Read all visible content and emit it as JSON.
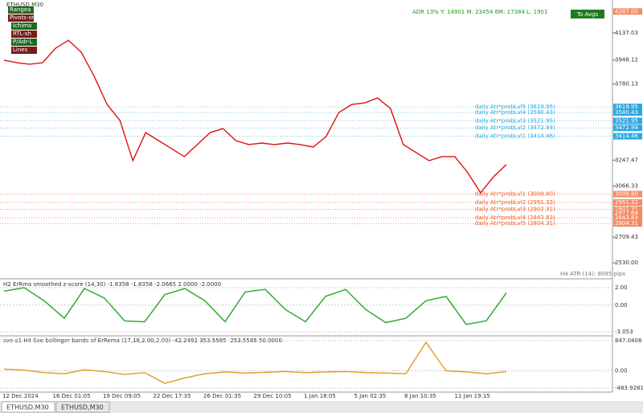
{
  "window": {
    "symbol": "ETHUSD,M30",
    "buttons": [
      "Rangea",
      "Pivots-or",
      "Ichimo",
      "RTL-sh",
      "P/Adr-L",
      "Lines"
    ],
    "stats": "ADR 13%  Y: 14901  M: 23454  6M: 17384  L: 1901",
    "avg_button": "To Avgs",
    "price_axis": [
      {
        "value": 4287.0,
        "label": "4287.00"
      },
      {
        "value": 4137.03,
        "label": "4137.03"
      },
      {
        "value": 3948.12,
        "label": "3948.12"
      },
      {
        "value": 3780.13,
        "label": "3780.13"
      },
      {
        "value": 3619.95,
        "label": "3619.95"
      },
      {
        "value": 3580.43,
        "label": "3580.43"
      },
      {
        "value": 3521.95,
        "label": "3521.95"
      },
      {
        "value": 3472.94,
        "label": "3472.94"
      },
      {
        "value": 3414.46,
        "label": "3414.46"
      },
      {
        "value": 3247.47,
        "label": "3247.47"
      },
      {
        "value": 3066.33,
        "label": "3066.33"
      },
      {
        "value": 3009.8,
        "label": "3009.80"
      },
      {
        "value": 2951.32,
        "label": "2951.32"
      },
      {
        "value": 2902.31,
        "label": "2902.31"
      },
      {
        "value": 2877.64,
        "label": "2877.64"
      },
      {
        "value": 2843.83,
        "label": "2843.83"
      },
      {
        "value": 2804.31,
        "label": "2804.31"
      },
      {
        "value": 2709.43,
        "label": "2709.43"
      },
      {
        "value": 2530.0,
        "label": "2530.00"
      }
    ],
    "levels": [
      {
        "label": "daily Atr*probLvl5 (3619.95)",
        "value": 3619.95,
        "color": "#2aa7e0"
      },
      {
        "label": "daily Atr*probLvl4 (3580.43)",
        "value": 3580.43,
        "color": "#2aa7e0"
      },
      {
        "label": "daily Atr*probLvl3 (3521.95)",
        "value": 3521.95,
        "color": "#2aa7e0"
      },
      {
        "label": "daily Atr*probLvl2 (3472.94)",
        "value": 3472.94,
        "color": "#2aa7e0"
      },
      {
        "label": "daily Atr*probLvl1 (3414.46)",
        "value": 3414.46,
        "color": "#2aa7e0"
      },
      {
        "label": "daily Atr*probLvl1 (3009.80)",
        "value": 3009.8,
        "color": "#f05a22"
      },
      {
        "label": "daily Atr*probLvl2 (2951.32)",
        "value": 2951.32,
        "color": "#f05a22"
      },
      {
        "label": "daily Atr*probLvl3 (2902.31)",
        "value": 2902.31,
        "color": "#f05a22"
      },
      {
        "label": "daily Atr*probLvl4 (2843.83)",
        "value": 2843.83,
        "color": "#f05a22"
      },
      {
        "label": "daily Atr*probLvl5 (2804.31)",
        "value": 2804.31,
        "color": "#f05a22"
      }
    ],
    "price": [
      3946,
      3929,
      3918,
      3929,
      4030,
      4086,
      4002,
      3834,
      3637,
      3525,
      3244,
      3440,
      3384,
      3328,
      3272,
      3356,
      3440,
      3468,
      3384,
      3356,
      3367,
      3356,
      3367,
      3356,
      3339,
      3412,
      3581,
      3637,
      3648,
      3682,
      3609,
      3356,
      3300,
      3244,
      3272,
      3272,
      3160,
      3019,
      3131,
      3216
    ],
    "atr_label": "H4 ATR (14): 8095 pips",
    "zscore": {
      "title": "H2 ErRma smoothed z-score (14,30) -1.8358 -1.8358 -2.0665 2.0000 -2.0000",
      "axis": [
        {
          "value": 2,
          "label": "2.00"
        },
        {
          "value": 0,
          "label": "0.00"
        },
        {
          "value": -3.053,
          "label": "-3.053"
        }
      ],
      "values": [
        1.6,
        2.0,
        0.5,
        -1.5,
        1.9,
        0.8,
        -1.8,
        -1.9,
        1.2,
        1.9,
        0.5,
        -1.9,
        1.5,
        1.8,
        -0.5,
        -1.9,
        1.0,
        1.8,
        -0.5,
        -2.0,
        -1.5,
        0.5,
        1.0,
        -2.2,
        -1.8,
        1.4
      ]
    },
    "bands": {
      "title": "sve a1 H4 Sve bollinger bands of ErRema (17,18,2.00,2.00) -42.2492 353.5585 -253.5585 50.0000",
      "axis": [
        {
          "value": 847.0408,
          "label": "847.0408"
        },
        {
          "value": 0,
          "label": "0.00"
        },
        {
          "value": -483.9281,
          "label": "-483.9281"
        }
      ],
      "values": [
        50,
        20,
        -50,
        -80,
        30,
        -20,
        -100,
        -50,
        -350,
        -200,
        -80,
        -30,
        -60,
        -40,
        -20,
        -50,
        -30,
        -20,
        -50,
        -60,
        -80,
        800,
        0,
        -30,
        -80,
        -20
      ]
    },
    "dates": [
      "12 Dec 2024",
      "16 Dec 01:05",
      "19 Dec 09:05",
      "22 Dec 17:35",
      "26 Dec 01:35",
      "29 Dec 10:05",
      "1 Jan 18:05",
      "5 Jan 02:35",
      "8 Jan 10:35",
      "11 Jan 19:15"
    ],
    "tabs": [
      "ETHUSD,M30",
      "ETHUSD,M30"
    ]
  }
}
